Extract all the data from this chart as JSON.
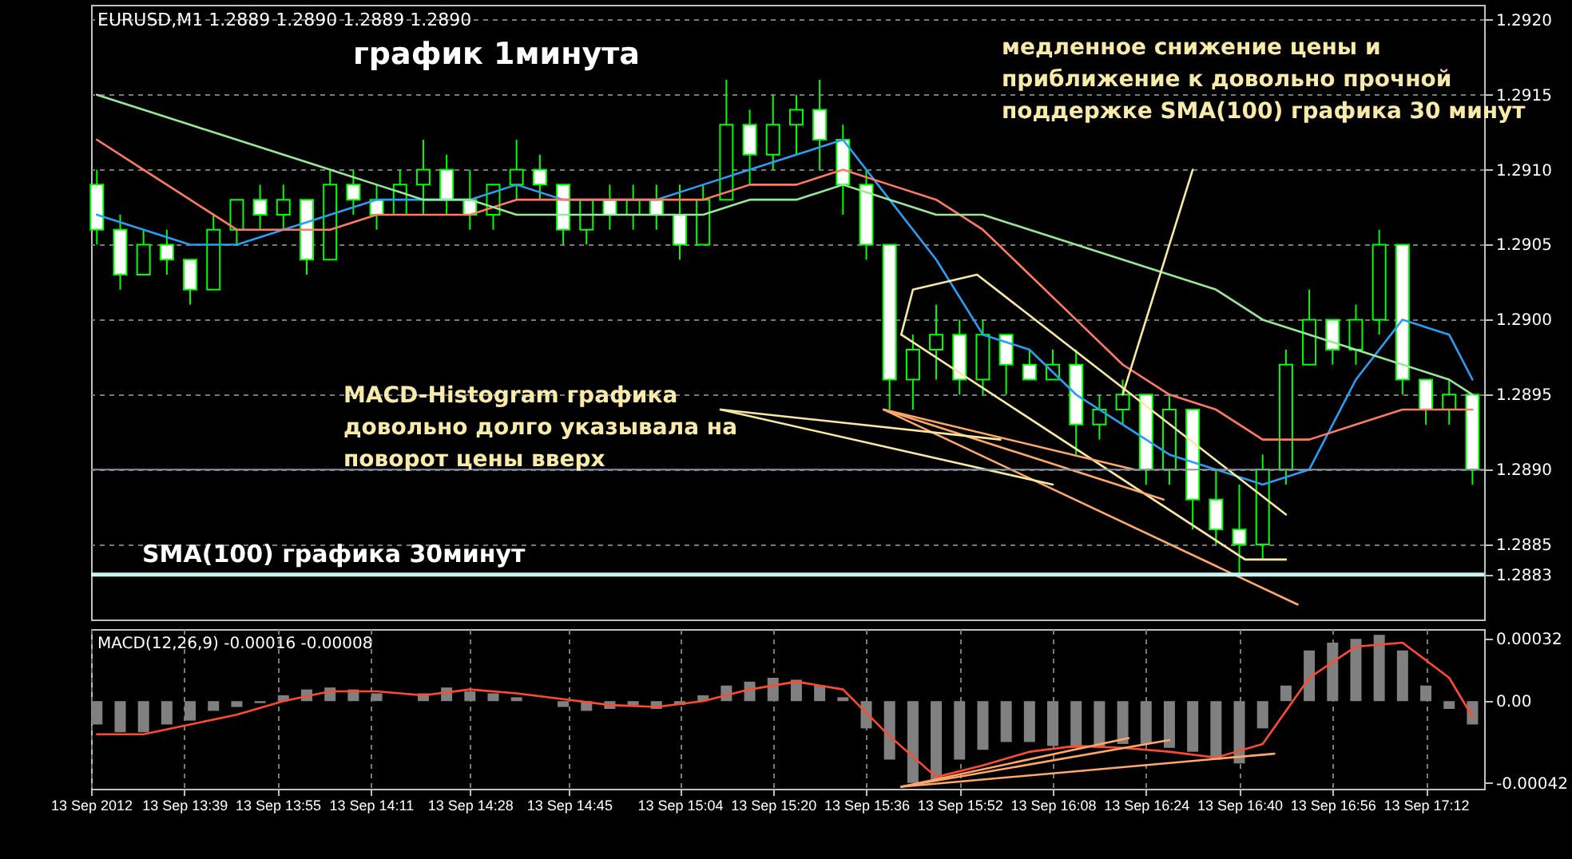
{
  "chart_data": [
    {
      "type": "candlestick",
      "title": "график 1минута",
      "tick_labels": "y",
      "grid": true,
      "color": "#00ff00",
      "annotations": [
        "EURUSD,M1  1.2889 1.2890 1.2889 1.2890",
        "медленное снижение цены и\nприближение к довольно прочной\nподдержке SMA(100) графика 30 минут",
        "MACD-Histogram графика\nдовольно долго указывала на\nповорот цены вверх"
      ],
      "xlim": [
        "2012-09-13T13:23",
        "2012-09-13T17:22"
      ],
      "xticks": [
        "2012-09-13T13:23",
        "2012-09-13T13:39",
        "2012-09-13T13:55",
        "2012-09-13T14:11",
        "2012-09-13T14:28",
        "2012-09-13T14:45",
        "2012-09-13T15:04",
        "2012-09-13T15:20",
        "2012-09-13T15:36",
        "2012-09-13T15:52",
        "2012-09-13T16:08",
        "2012-09-13T16:24",
        "2012-09-13T16:40",
        "2012-09-13T16:56",
        "2012-09-13T17:12"
      ],
      "ylim": [
        1.288,
        1.2921
      ],
      "yticks": [
        {
          "value": 1.292,
          "label": "1.2920"
        },
        "1.2915",
        {
          "value": 1.291,
          "label": "1.2910"
        },
        "1.2905",
        {
          "value": 1.29,
          "label": "1.2900"
        },
        "1.2895",
        {
          "value": 1.289,
          "label": "1.2890"
        },
        "1.2885",
        {
          "value": 1.2883,
          "label": "1.2883"
        }
      ],
      "ref_lines": [
        {
          "axis": "y",
          "value": 1.2883,
          "label": "SMA(100) графика 30минут",
          "color": "#c8f4f4"
        },
        {
          "axis": "y",
          "value": 1.289,
          "color": "#8696a6"
        }
      ],
      "x": [
        "2012-09-13T13:24",
        "2012-09-13T13:28",
        "2012-09-13T13:32",
        "2012-09-13T13:36",
        "2012-09-13T13:40",
        "2012-09-13T13:44",
        "2012-09-13T13:48",
        "2012-09-13T13:52",
        "2012-09-13T13:56",
        "2012-09-13T14:00",
        "2012-09-13T14:04",
        "2012-09-13T14:08",
        "2012-09-13T14:12",
        "2012-09-13T14:16",
        "2012-09-13T14:20",
        "2012-09-13T14:24",
        "2012-09-13T14:28",
        "2012-09-13T14:32",
        "2012-09-13T14:36",
        "2012-09-13T14:40",
        "2012-09-13T14:44",
        "2012-09-13T14:48",
        "2012-09-13T14:52",
        "2012-09-13T14:56",
        "2012-09-13T15:00",
        "2012-09-13T15:04",
        "2012-09-13T15:08",
        "2012-09-13T15:12",
        "2012-09-13T15:16",
        "2012-09-13T15:20",
        "2012-09-13T15:24",
        "2012-09-13T15:28",
        "2012-09-13T15:32",
        "2012-09-13T15:36",
        "2012-09-13T15:40",
        "2012-09-13T15:44",
        "2012-09-13T15:48",
        "2012-09-13T15:52",
        "2012-09-13T15:56",
        "2012-09-13T16:00",
        "2012-09-13T16:04",
        "2012-09-13T16:08",
        "2012-09-13T16:12",
        "2012-09-13T16:16",
        "2012-09-13T16:20",
        "2012-09-13T16:24",
        "2012-09-13T16:28",
        "2012-09-13T16:32",
        "2012-09-13T16:36",
        "2012-09-13T16:40",
        "2012-09-13T16:44",
        "2012-09-13T16:48",
        "2012-09-13T16:52",
        "2012-09-13T16:56",
        "2012-09-13T17:00",
        "2012-09-13T17:04",
        "2012-09-13T17:08",
        "2012-09-13T17:12",
        "2012-09-13T17:16",
        "2012-09-13T17:20"
      ],
      "ohlc": [
        [
          1.2909,
          1.291,
          1.2905,
          1.2906
        ],
        [
          1.2906,
          1.2907,
          1.2902,
          1.2903
        ],
        [
          1.2903,
          1.2906,
          1.2903,
          1.2905
        ],
        [
          1.2905,
          1.2906,
          1.2903,
          1.2904
        ],
        [
          1.2904,
          1.2904,
          1.2901,
          1.2902
        ],
        [
          1.2902,
          1.2907,
          1.2902,
          1.2906
        ],
        [
          1.2906,
          1.2908,
          1.2905,
          1.2908
        ],
        [
          1.2908,
          1.2909,
          1.2906,
          1.2907
        ],
        [
          1.2907,
          1.2909,
          1.2906,
          1.2908
        ],
        [
          1.2908,
          1.2908,
          1.2903,
          1.2904
        ],
        [
          1.2904,
          1.291,
          1.2904,
          1.2909
        ],
        [
          1.2909,
          1.291,
          1.2907,
          1.2908
        ],
        [
          1.2908,
          1.2909,
          1.2906,
          1.2907
        ],
        [
          1.2907,
          1.291,
          1.2907,
          1.2909
        ],
        [
          1.2909,
          1.2912,
          1.2907,
          1.291
        ],
        [
          1.291,
          1.2911,
          1.2907,
          1.2908
        ],
        [
          1.2908,
          1.291,
          1.2906,
          1.2907
        ],
        [
          1.2907,
          1.2909,
          1.2906,
          1.2909
        ],
        [
          1.2909,
          1.2912,
          1.2908,
          1.291
        ],
        [
          1.291,
          1.2911,
          1.2908,
          1.2909
        ],
        [
          1.2909,
          1.2909,
          1.2905,
          1.2906
        ],
        [
          1.2906,
          1.2908,
          1.2905,
          1.2908
        ],
        [
          1.2908,
          1.2909,
          1.2906,
          1.2907
        ],
        [
          1.2907,
          1.2909,
          1.2906,
          1.2908
        ],
        [
          1.2908,
          1.2909,
          1.2906,
          1.2907
        ],
        [
          1.2907,
          1.2909,
          1.2904,
          1.2905
        ],
        [
          1.2905,
          1.2909,
          1.2905,
          1.2908
        ],
        [
          1.2908,
          1.2916,
          1.2908,
          1.2913
        ],
        [
          1.2913,
          1.2914,
          1.2909,
          1.2911
        ],
        [
          1.2911,
          1.2915,
          1.291,
          1.2913
        ],
        [
          1.2913,
          1.2915,
          1.2911,
          1.2914
        ],
        [
          1.2914,
          1.2916,
          1.291,
          1.2912
        ],
        [
          1.2912,
          1.2913,
          1.2907,
          1.2909
        ],
        [
          1.2909,
          1.291,
          1.2904,
          1.2905
        ],
        [
          1.2905,
          1.2905,
          1.2894,
          1.2896
        ],
        [
          1.2896,
          1.2899,
          1.2894,
          1.2898
        ],
        [
          1.2898,
          1.2901,
          1.2896,
          1.2899
        ],
        [
          1.2899,
          1.29,
          1.2895,
          1.2896
        ],
        [
          1.2896,
          1.29,
          1.2895,
          1.2899
        ],
        [
          1.2899,
          1.2899,
          1.2895,
          1.2897
        ],
        [
          1.2897,
          1.2898,
          1.2896,
          1.2896
        ],
        [
          1.2896,
          1.2898,
          1.2896,
          1.2897
        ],
        [
          1.2897,
          1.2898,
          1.2891,
          1.2893
        ],
        [
          1.2893,
          1.2895,
          1.2892,
          1.2894
        ],
        [
          1.2894,
          1.2896,
          1.2893,
          1.2895
        ],
        [
          1.2895,
          1.2895,
          1.2889,
          1.289
        ],
        [
          1.289,
          1.2895,
          1.2889,
          1.2894
        ],
        [
          1.2894,
          1.2894,
          1.2886,
          1.2888
        ],
        [
          1.2888,
          1.289,
          1.2885,
          1.2886
        ],
        [
          1.2886,
          1.2889,
          1.2883,
          1.2885
        ],
        [
          1.2885,
          1.2891,
          1.2884,
          1.289
        ],
        [
          1.289,
          1.2898,
          1.2889,
          1.2897
        ],
        [
          1.2897,
          1.2902,
          1.2897,
          1.29
        ],
        [
          1.29,
          1.29,
          1.2897,
          1.2898
        ],
        [
          1.2898,
          1.2901,
          1.2897,
          1.29
        ],
        [
          1.29,
          1.2906,
          1.2899,
          1.2905
        ],
        [
          1.2905,
          1.2905,
          1.2895,
          1.2896
        ],
        [
          1.2896,
          1.2896,
          1.2893,
          1.2894
        ],
        [
          1.2894,
          1.2896,
          1.2893,
          1.2895
        ],
        [
          1.2895,
          1.2895,
          1.2889,
          1.289
        ]
      ],
      "series": [
        {
          "type": "line",
          "color": "#2a9df4",
          "x": [
            "2012-09-13T13:24",
            "2012-09-13T13:32",
            "2012-09-13T13:40",
            "2012-09-13T13:48",
            "2012-09-13T13:56",
            "2012-09-13T14:04",
            "2012-09-13T14:12",
            "2012-09-13T14:20",
            "2012-09-13T14:28",
            "2012-09-13T14:36",
            "2012-09-13T14:44",
            "2012-09-13T14:52",
            "2012-09-13T15:00",
            "2012-09-13T15:08",
            "2012-09-13T15:16",
            "2012-09-13T15:24",
            "2012-09-13T15:32",
            "2012-09-13T15:40",
            "2012-09-13T15:48",
            "2012-09-13T15:56",
            "2012-09-13T16:04",
            "2012-09-13T16:12",
            "2012-09-13T16:20",
            "2012-09-13T16:28",
            "2012-09-13T16:36",
            "2012-09-13T16:44",
            "2012-09-13T16:52",
            "2012-09-13T17:00",
            "2012-09-13T17:08",
            "2012-09-13T17:16",
            "2012-09-13T17:20"
          ],
          "values": [
            1.2907,
            1.2906,
            1.2905,
            1.2905,
            1.2906,
            1.2907,
            1.2908,
            1.2908,
            1.2908,
            1.2909,
            1.2908,
            1.2908,
            1.2908,
            1.2909,
            1.291,
            1.2911,
            1.2912,
            1.2908,
            1.2904,
            1.2899,
            1.2898,
            1.2895,
            1.2893,
            1.2891,
            1.289,
            1.2889,
            1.289,
            1.2896,
            1.29,
            1.2899,
            1.2896
          ]
        },
        {
          "type": "line",
          "color": "#ff7a60",
          "x": [
            "2012-09-13T13:24",
            "2012-09-13T13:32",
            "2012-09-13T13:40",
            "2012-09-13T13:48",
            "2012-09-13T13:56",
            "2012-09-13T14:04",
            "2012-09-13T14:12",
            "2012-09-13T14:20",
            "2012-09-13T14:28",
            "2012-09-13T14:36",
            "2012-09-13T14:44",
            "2012-09-13T14:52",
            "2012-09-13T15:00",
            "2012-09-13T15:08",
            "2012-09-13T15:16",
            "2012-09-13T15:24",
            "2012-09-13T15:32",
            "2012-09-13T15:40",
            "2012-09-13T15:48",
            "2012-09-13T15:56",
            "2012-09-13T16:04",
            "2012-09-13T16:12",
            "2012-09-13T16:20",
            "2012-09-13T16:28",
            "2012-09-13T16:36",
            "2012-09-13T16:44",
            "2012-09-13T16:52",
            "2012-09-13T17:00",
            "2012-09-13T17:08",
            "2012-09-13T17:16",
            "2012-09-13T17:20"
          ],
          "values": [
            1.2912,
            1.291,
            1.2908,
            1.2906,
            1.2906,
            1.2906,
            1.2907,
            1.2907,
            1.2907,
            1.2908,
            1.2908,
            1.2908,
            1.2908,
            1.2908,
            1.2909,
            1.2909,
            1.291,
            1.2909,
            1.2908,
            1.2906,
            1.2903,
            1.29,
            1.2897,
            1.2895,
            1.2894,
            1.2892,
            1.2892,
            1.2893,
            1.2894,
            1.2894,
            1.2894
          ]
        },
        {
          "type": "line",
          "color": "#98e898",
          "x": [
            "2012-09-13T13:24",
            "2012-09-13T13:32",
            "2012-09-13T13:40",
            "2012-09-13T13:48",
            "2012-09-13T13:56",
            "2012-09-13T14:04",
            "2012-09-13T14:12",
            "2012-09-13T14:20",
            "2012-09-13T14:28",
            "2012-09-13T14:36",
            "2012-09-13T14:44",
            "2012-09-13T14:52",
            "2012-09-13T15:00",
            "2012-09-13T15:08",
            "2012-09-13T15:16",
            "2012-09-13T15:24",
            "2012-09-13T15:32",
            "2012-09-13T15:40",
            "2012-09-13T15:48",
            "2012-09-13T15:56",
            "2012-09-13T16:04",
            "2012-09-13T16:12",
            "2012-09-13T16:20",
            "2012-09-13T16:28",
            "2012-09-13T16:36",
            "2012-09-13T16:44",
            "2012-09-13T16:52",
            "2012-09-13T17:00",
            "2012-09-13T17:08",
            "2012-09-13T17:16",
            "2012-09-13T17:20"
          ],
          "values": [
            1.2915,
            1.2914,
            1.2913,
            1.2912,
            1.2911,
            1.291,
            1.2909,
            1.2908,
            1.2908,
            1.2907,
            1.2907,
            1.2907,
            1.2907,
            1.2907,
            1.2908,
            1.2908,
            1.2909,
            1.2908,
            1.2907,
            1.2907,
            1.2906,
            1.2905,
            1.2904,
            1.2903,
            1.2902,
            1.29,
            1.2899,
            1.2898,
            1.2897,
            1.2896,
            1.2895
          ]
        },
        {
          "type": "line",
          "color": "#f8e8a0",
          "x": [
            "2012-09-13T15:42",
            "2012-09-13T15:44",
            "2012-09-13T15:55",
            "2012-09-13T16:48"
          ],
          "values": [
            1.2899,
            1.2902,
            1.2903,
            1.2887
          ]
        },
        {
          "type": "line",
          "color": "#f8e8a0",
          "x": [
            "2012-09-13T15:42",
            "2012-09-13T16:41",
            "2012-09-13T16:48"
          ],
          "values": [
            1.2899,
            1.2884,
            1.2884
          ]
        },
        {
          "type": "line",
          "color": "#f8e8a0",
          "x": [
            "2012-09-13T16:20",
            "2012-09-13T16:32"
          ],
          "values": [
            1.2895,
            1.291
          ]
        },
        {
          "type": "line",
          "color": "#ffa868",
          "x": [
            "2012-09-13T15:39",
            "2012-09-13T16:50"
          ],
          "values": [
            1.2894,
            1.2881
          ]
        },
        {
          "type": "line",
          "color": "#ffa868",
          "x": [
            "2012-09-13T15:39",
            "2012-09-13T16:27"
          ],
          "values": [
            1.2894,
            1.2888
          ]
        },
        {
          "type": "line",
          "color": "#ffa868",
          "x": [
            "2012-09-13T15:39",
            "2012-09-13T16:22"
          ],
          "values": [
            1.2894,
            1.289
          ]
        },
        {
          "type": "line",
          "color": "#f8e8a0",
          "x": [
            "2012-09-13T15:11",
            "2012-09-13T15:59"
          ],
          "values": [
            1.2894,
            1.2892
          ]
        },
        {
          "type": "line",
          "color": "#f8e8a0",
          "x": [
            "2012-09-13T15:11",
            "2012-09-13T16:08"
          ],
          "values": [
            1.2894,
            1.2889
          ]
        }
      ]
    },
    {
      "type": "bar",
      "grid": "x",
      "annotations": [
        "MACD(12,26,9) -0.00016 -0.00008"
      ],
      "xlim": [
        "2012-09-13T13:23",
        "2012-09-13T17:22"
      ],
      "xticks": [
        {
          "value": "2012-09-13T13:23",
          "label": "13 Sep 2012"
        },
        {
          "value": "2012-09-13T13:39",
          "label": "13 Sep 13:39"
        },
        {
          "value": "2012-09-13T13:55",
          "label": "13 Sep 13:55"
        },
        {
          "value": "2012-09-13T14:11",
          "label": "13 Sep 14:11"
        },
        {
          "value": "2012-09-13T14:28",
          "label": "13 Sep 14:28"
        },
        {
          "value": "2012-09-13T14:45",
          "label": "13 Sep 14:45"
        },
        {
          "value": "2012-09-13T15:04",
          "label": "13 Sep 15:04"
        },
        {
          "value": "2012-09-13T15:20",
          "label": "13 Sep 15:20"
        },
        {
          "value": "2012-09-13T15:36",
          "label": "13 Sep 15:36"
        },
        {
          "value": "2012-09-13T15:52",
          "label": "13 Sep 15:52"
        },
        {
          "value": "2012-09-13T16:08",
          "label": "13 Sep 16:08"
        },
        {
          "value": "2012-09-13T16:24",
          "label": "13 Sep 16:24"
        },
        {
          "value": "2012-09-13T16:40",
          "label": "13 Sep 16:40"
        },
        {
          "value": "2012-09-13T16:56",
          "label": "13 Sep 16:56"
        },
        {
          "value": "2012-09-13T17:12",
          "label": "13 Sep 17:12"
        }
      ],
      "ylim": [
        -0.00045,
        0.00037
      ],
      "yticks": [
        0.00032,
        {
          "value": 0,
          "label": "0.00"
        },
        -0.00042
      ],
      "series": [
        {
          "type": "bar",
          "color": "#808080",
          "x": [
            "2012-09-13T13:24",
            "2012-09-13T13:28",
            "2012-09-13T13:32",
            "2012-09-13T13:36",
            "2012-09-13T13:40",
            "2012-09-13T13:44",
            "2012-09-13T13:48",
            "2012-09-13T13:52",
            "2012-09-13T13:56",
            "2012-09-13T14:00",
            "2012-09-13T14:04",
            "2012-09-13T14:08",
            "2012-09-13T14:12",
            "2012-09-13T14:16",
            "2012-09-13T14:20",
            "2012-09-13T14:24",
            "2012-09-13T14:28",
            "2012-09-13T14:32",
            "2012-09-13T14:36",
            "2012-09-13T14:40",
            "2012-09-13T14:44",
            "2012-09-13T14:48",
            "2012-09-13T14:52",
            "2012-09-13T14:56",
            "2012-09-13T15:00",
            "2012-09-13T15:04",
            "2012-09-13T15:08",
            "2012-09-13T15:12",
            "2012-09-13T15:16",
            "2012-09-13T15:20",
            "2012-09-13T15:24",
            "2012-09-13T15:28",
            "2012-09-13T15:32",
            "2012-09-13T15:36",
            "2012-09-13T15:40",
            "2012-09-13T15:44",
            "2012-09-13T15:48",
            "2012-09-13T15:52",
            "2012-09-13T15:56",
            "2012-09-13T16:00",
            "2012-09-13T16:04",
            "2012-09-13T16:08",
            "2012-09-13T16:12",
            "2012-09-13T16:16",
            "2012-09-13T16:20",
            "2012-09-13T16:24",
            "2012-09-13T16:28",
            "2012-09-13T16:32",
            "2012-09-13T16:36",
            "2012-09-13T16:40",
            "2012-09-13T16:44",
            "2012-09-13T16:48",
            "2012-09-13T16:52",
            "2012-09-13T16:56",
            "2012-09-13T17:00",
            "2012-09-13T17:04",
            "2012-09-13T17:08",
            "2012-09-13T17:12",
            "2012-09-13T17:16",
            "2012-09-13T17:20"
          ],
          "values": [
            -0.00012,
            -0.00016,
            -0.00016,
            -0.00012,
            -0.0001,
            -5e-05,
            -3e-05,
            -1e-05,
            3e-05,
            6e-05,
            7e-05,
            6e-05,
            4e-05,
            0,
            4e-05,
            7e-05,
            5e-05,
            4e-05,
            2e-05,
            0,
            -3e-05,
            -5e-05,
            -4e-05,
            -2e-05,
            -4e-05,
            -2e-05,
            3e-05,
            8e-05,
            0.0001,
            0.00012,
            0.00011,
            8e-05,
            2e-05,
            -0.00014,
            -0.0003,
            -0.00042,
            -0.0004,
            -0.0003,
            -0.00025,
            -0.00021,
            -0.00021,
            -0.00023,
            -0.00024,
            -0.00024,
            -0.00022,
            -0.00022,
            -0.00024,
            -0.00026,
            -0.0003,
            -0.00032,
            -0.00014,
            8e-05,
            0.00026,
            0.0003,
            0.00032,
            0.00034,
            0.00026,
            8e-05,
            -4e-05,
            -0.00012
          ]
        },
        {
          "type": "line",
          "color": "#ff4a30",
          "x": [
            "2012-09-13T13:24",
            "2012-09-13T13:32",
            "2012-09-13T13:40",
            "2012-09-13T13:48",
            "2012-09-13T13:56",
            "2012-09-13T14:04",
            "2012-09-13T14:12",
            "2012-09-13T14:20",
            "2012-09-13T14:28",
            "2012-09-13T14:36",
            "2012-09-13T14:44",
            "2012-09-13T14:52",
            "2012-09-13T15:00",
            "2012-09-13T15:08",
            "2012-09-13T15:16",
            "2012-09-13T15:24",
            "2012-09-13T15:32",
            "2012-09-13T15:40",
            "2012-09-13T15:48",
            "2012-09-13T15:56",
            "2012-09-13T16:04",
            "2012-09-13T16:12",
            "2012-09-13T16:20",
            "2012-09-13T16:28",
            "2012-09-13T16:36",
            "2012-09-13T16:44",
            "2012-09-13T16:52",
            "2012-09-13T17:00",
            "2012-09-13T17:08",
            "2012-09-13T17:16",
            "2012-09-13T17:20"
          ],
          "values": [
            -0.00017,
            -0.00017,
            -0.00012,
            -7e-05,
            0,
            5e-05,
            5e-05,
            3e-05,
            6e-05,
            4e-05,
            1e-05,
            -2e-05,
            -3e-05,
            0,
            6e-05,
            0.0001,
            6e-05,
            -0.00018,
            -0.00039,
            -0.00033,
            -0.00026,
            -0.00023,
            -0.00024,
            -0.00026,
            -0.00029,
            -0.00022,
            0.00012,
            0.00028,
            0.0003,
            0.00012,
            -8e-05
          ]
        },
        {
          "type": "line",
          "color": "#ffa868",
          "x": [
            "2012-09-13T15:42",
            "2012-09-13T16:21"
          ],
          "values": [
            -0.00044,
            -0.00019
          ]
        },
        {
          "type": "line",
          "color": "#ffa868",
          "x": [
            "2012-09-13T15:42",
            "2012-09-13T16:28"
          ],
          "values": [
            -0.00044,
            -0.0002
          ]
        },
        {
          "type": "line",
          "color": "#ffa868",
          "x": [
            "2012-09-13T15:42",
            "2012-09-13T16:46"
          ],
          "values": [
            -0.00044,
            -0.00027
          ]
        }
      ]
    }
  ]
}
